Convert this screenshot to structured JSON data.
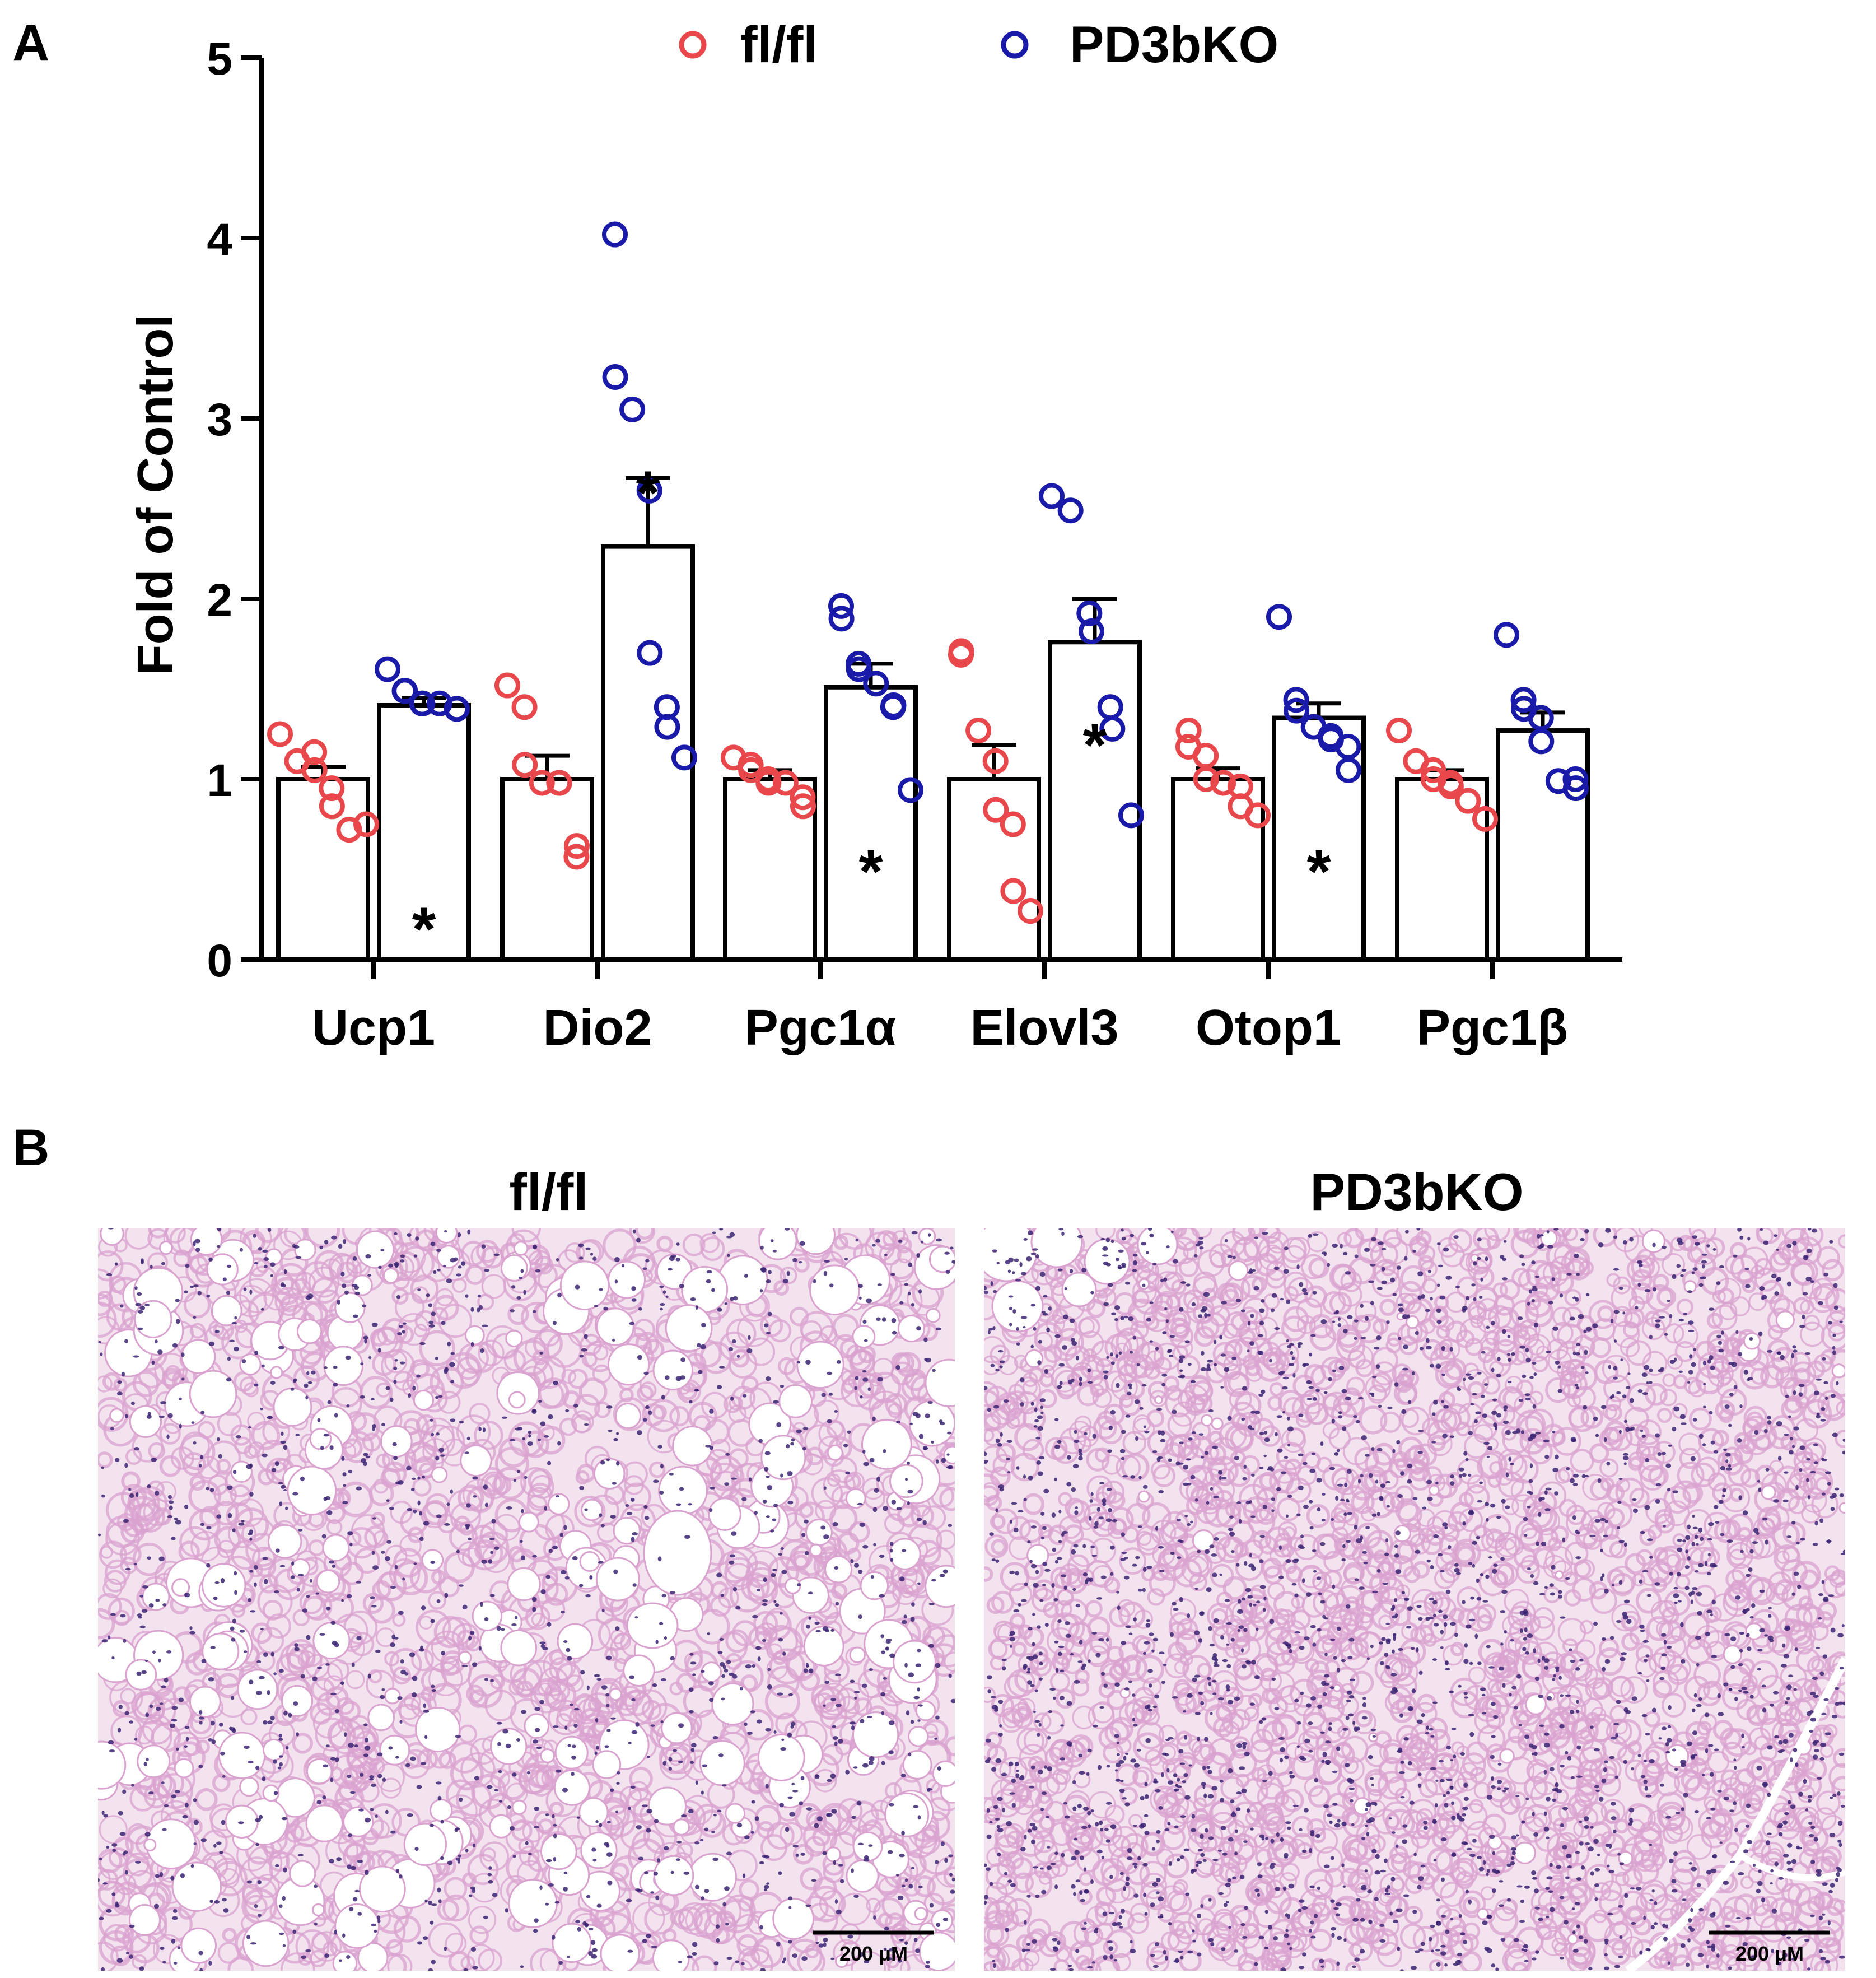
{
  "panel_a": {
    "label": "A",
    "chart_data": {
      "type": "bar",
      "title": "",
      "xlabel": "",
      "ylabel": "Fold of Control",
      "ylim": [
        0,
        5
      ],
      "yticks": [
        "0",
        "1",
        "2",
        "3",
        "4",
        "5"
      ],
      "categories": [
        "Ucp1",
        "Dio2",
        "Pgc1α",
        "Elovl3",
        "Otop1",
        "Pgc1β"
      ],
      "legend": {
        "placement": "top-center",
        "entries": [
          "fl/fl",
          "PD3bKO"
        ]
      },
      "colors": {
        "fl/fl": "#e8484b",
        "PD3bKO": "#1a1aa8",
        "bar_fill": "#ffffff",
        "bar_edge": "#000000"
      },
      "series": [
        {
          "name": "fl/fl",
          "values": [
            1.0,
            1.0,
            1.0,
            1.0,
            1.0,
            1.0
          ],
          "sem": [
            0.07,
            0.13,
            0.05,
            0.19,
            0.06,
            0.05
          ],
          "points": [
            [
              1.25,
              1.1,
              1.15,
              1.05,
              0.95,
              0.85,
              0.72,
              0.75
            ],
            [
              1.52,
              1.4,
              1.08,
              0.98,
              0.98,
              0.98,
              0.57,
              0.63
            ],
            [
              1.12,
              1.08,
              1.05,
              1.0,
              0.98,
              0.98,
              0.9,
              0.85
            ],
            [
              1.69,
              1.71,
              1.27,
              1.1,
              0.83,
              0.75,
              0.38,
              0.27
            ],
            [
              1.18,
              1.27,
              1.13,
              1.0,
              0.98,
              0.96,
              0.85,
              0.8
            ],
            [
              1.27,
              1.1,
              1.05,
              1.0,
              0.98,
              0.96,
              0.88,
              0.78
            ]
          ]
        },
        {
          "name": "PD3bKO",
          "values": [
            1.41,
            2.29,
            1.51,
            1.76,
            1.34,
            1.27
          ],
          "sem": [
            0.04,
            0.38,
            0.13,
            0.24,
            0.08,
            0.1
          ],
          "points": [
            [
              1.61,
              1.49,
              1.49,
              1.42,
              1.42,
              1.42,
              1.39,
              1.39
            ],
            [
              4.02,
              3.23,
              3.05,
              2.6,
              1.7,
              1.4,
              1.29,
              1.12
            ],
            [
              1.96,
              1.89,
              1.64,
              1.61,
              1.53,
              1.4,
              1.41,
              0.94
            ],
            [
              2.57,
              2.49,
              1.92,
              1.82,
              1.4,
              1.28,
              0.8
            ],
            [
              1.9,
              1.44,
              1.38,
              1.29,
              1.24,
              1.22,
              1.18,
              1.05
            ],
            [
              1.8,
              1.44,
              1.39,
              1.34,
              1.21,
              0.99,
              1.0,
              0.95
            ]
          ]
        }
      ],
      "significance": [
        {
          "category": "Ucp1",
          "series": "PD3bKO",
          "mark": "*",
          "y": 0.2
        },
        {
          "category": "Dio2",
          "series": "PD3bKO",
          "mark": "*",
          "y": 2.62
        },
        {
          "category": "Pgc1α",
          "series": "PD3bKO",
          "mark": "*",
          "y": 0.52
        },
        {
          "category": "Elovl3",
          "series": "PD3bKO",
          "mark": "*",
          "y": 1.22
        },
        {
          "category": "Otop1",
          "series": "PD3bKO",
          "mark": "*",
          "y": 0.52
        }
      ]
    }
  },
  "panel_b": {
    "label": "B",
    "images": [
      {
        "title": "fl/fl",
        "scale_bar": "200 μM",
        "texture": "large-vacuoles"
      },
      {
        "title": "PD3bKO",
        "scale_bar": "200 μM",
        "texture": "dense-cells"
      }
    ],
    "colors": {
      "background": "#f3e3ef",
      "tissue": "#d9a2cf",
      "nuclei": "#3b2473"
    }
  }
}
